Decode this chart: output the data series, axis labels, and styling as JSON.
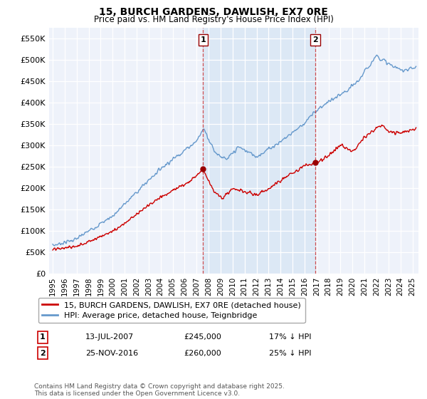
{
  "title": "15, BURCH GARDENS, DAWLISH, EX7 0RE",
  "subtitle": "Price paid vs. HM Land Registry's House Price Index (HPI)",
  "ylabel_ticks": [
    "£0",
    "£50K",
    "£100K",
    "£150K",
    "£200K",
    "£250K",
    "£300K",
    "£350K",
    "£400K",
    "£450K",
    "£500K",
    "£550K"
  ],
  "ytick_vals": [
    0,
    50000,
    100000,
    150000,
    200000,
    250000,
    300000,
    350000,
    400000,
    450000,
    500000,
    550000
  ],
  "ylim": [
    0,
    575000
  ],
  "xlim_start": 1994.7,
  "xlim_end": 2025.5,
  "marker1_x": 2007.53,
  "marker1_y": 245000,
  "marker1_label": "1",
  "marker1_date": "13-JUL-2007",
  "marker1_price": "£245,000",
  "marker1_hpi": "17% ↓ HPI",
  "marker2_x": 2016.9,
  "marker2_y": 260000,
  "marker2_label": "2",
  "marker2_date": "25-NOV-2016",
  "marker2_price": "£260,000",
  "marker2_hpi": "25% ↓ HPI",
  "legend_line1": "15, BURCH GARDENS, DAWLISH, EX7 0RE (detached house)",
  "legend_line2": "HPI: Average price, detached house, Teignbridge",
  "footnote": "Contains HM Land Registry data © Crown copyright and database right 2025.\nThis data is licensed under the Open Government Licence v3.0.",
  "line_color_red": "#cc0000",
  "line_color_blue": "#6699cc",
  "shade_color": "#dce8f5",
  "background_color": "#eef2fa",
  "grid_color": "#ffffff",
  "xtick_years": [
    1995,
    1996,
    1997,
    1998,
    1999,
    2000,
    2001,
    2002,
    2003,
    2004,
    2005,
    2006,
    2007,
    2008,
    2009,
    2010,
    2011,
    2012,
    2013,
    2014,
    2015,
    2016,
    2017,
    2018,
    2019,
    2020,
    2021,
    2022,
    2023,
    2024,
    2025
  ]
}
